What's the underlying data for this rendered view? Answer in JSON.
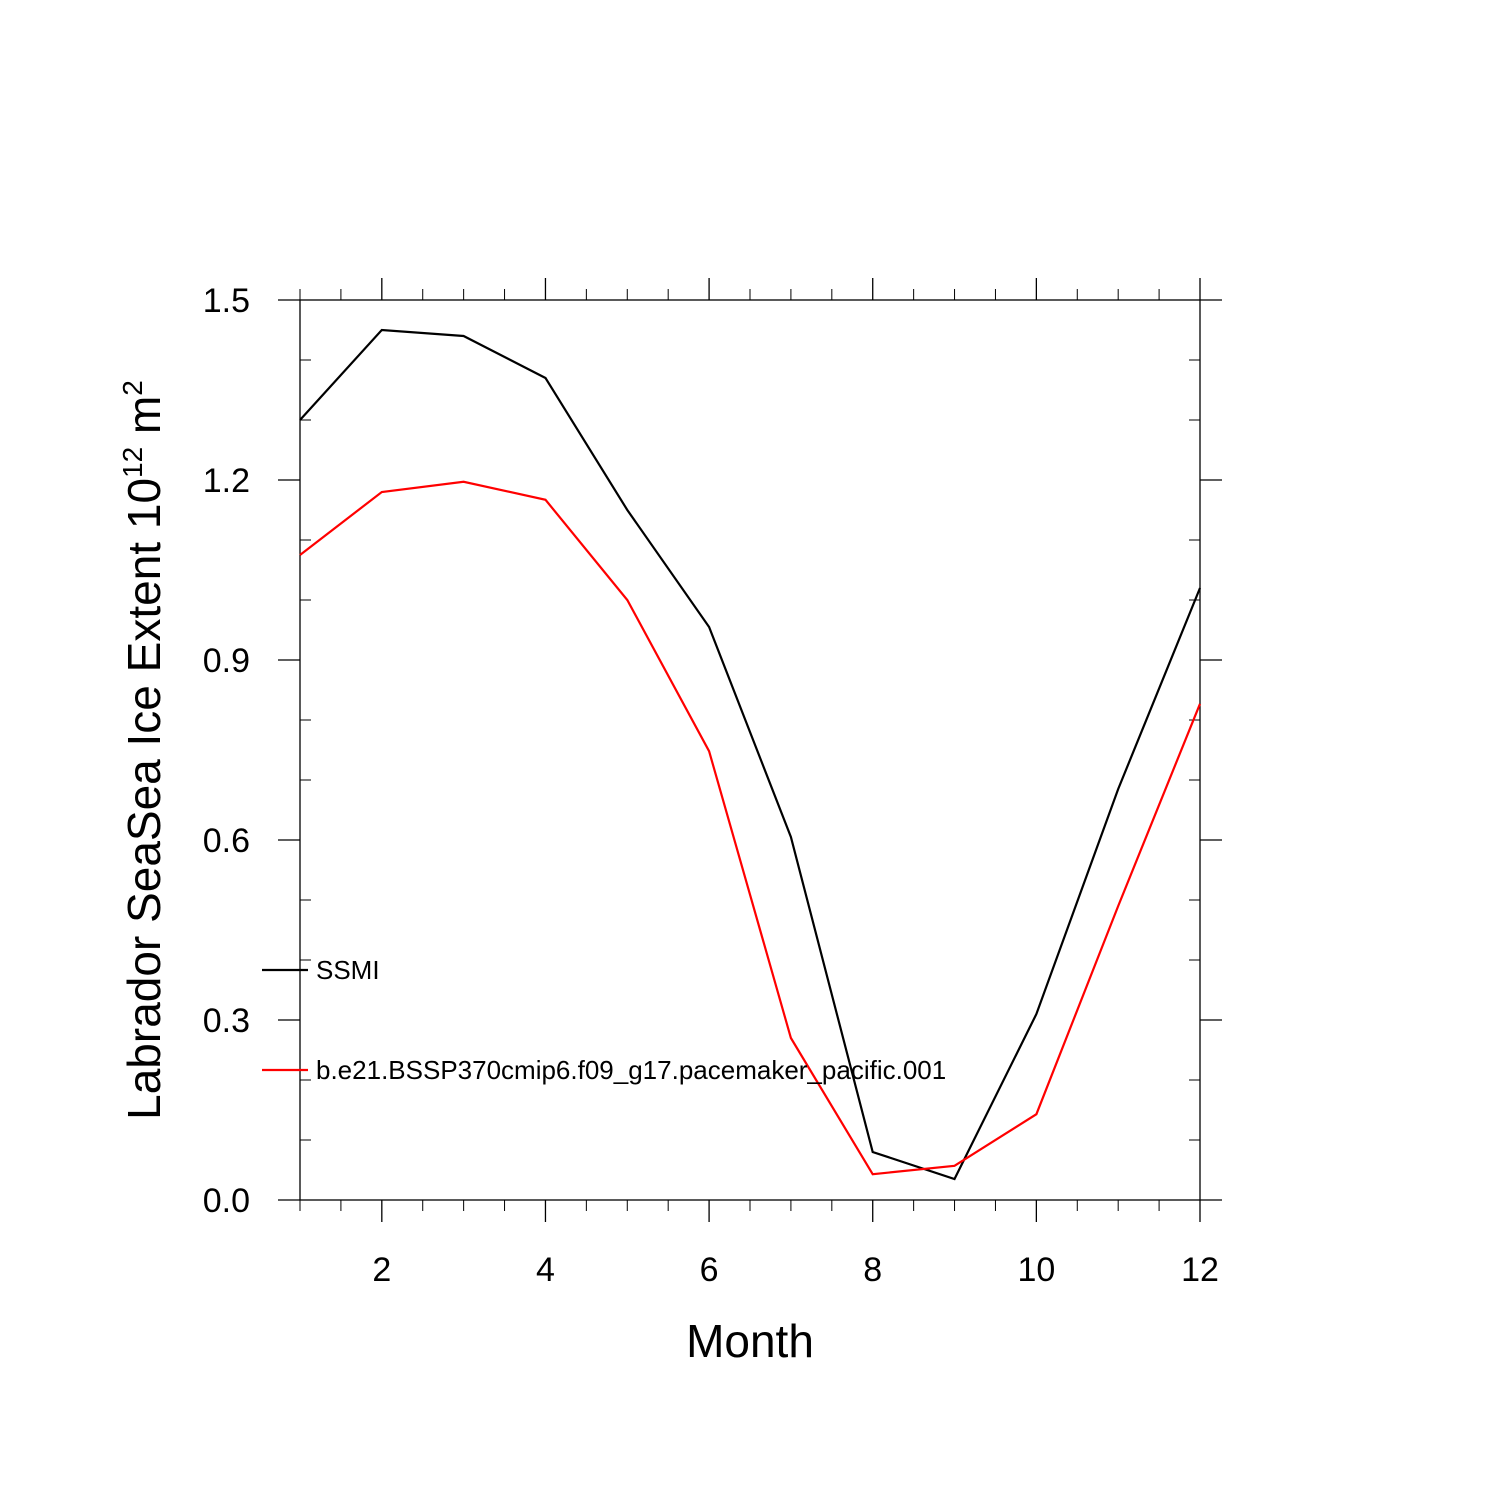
{
  "chart_data": {
    "type": "line",
    "title": "",
    "xlabel": "Month",
    "ylabel_main": "Labrador SeaSea Ice Extent 10",
    "ylabel_sup": "12",
    "ylabel_unit": " m",
    "ylabel_unit_sup": "2",
    "xlim": [
      1,
      12
    ],
    "ylim": [
      0,
      1.5
    ],
    "xticks": [
      2,
      4,
      6,
      8,
      10,
      12
    ],
    "xtick_labels": [
      "2",
      "4",
      "6",
      "8",
      "10",
      "12"
    ],
    "yticks": [
      0,
      0.3,
      0.6,
      0.9,
      1.2,
      1.5
    ],
    "ytick_labels": [
      "0.0",
      "0.3",
      "0.6",
      "0.9",
      "1.2",
      "1.5"
    ],
    "grid": false,
    "legend_position": "left-inside",
    "x": [
      1,
      2,
      3,
      4,
      5,
      6,
      7,
      8,
      9,
      10,
      11,
      12
    ],
    "series": [
      {
        "name": "SSMI",
        "color": "#000000",
        "values": [
          1.3,
          1.45,
          1.44,
          1.37,
          1.15,
          0.955,
          0.605,
          0.08,
          0.035,
          0.31,
          0.685,
          1.02
        ]
      },
      {
        "name": "b.e21.BSSP370cmip6.f09_g17.pacemaker_pacific.001",
        "color": "#ff0000",
        "values": [
          1.075,
          1.18,
          1.197,
          1.167,
          1.0,
          0.748,
          0.27,
          0.043,
          0.057,
          0.143,
          0.49,
          0.827
        ]
      }
    ]
  }
}
